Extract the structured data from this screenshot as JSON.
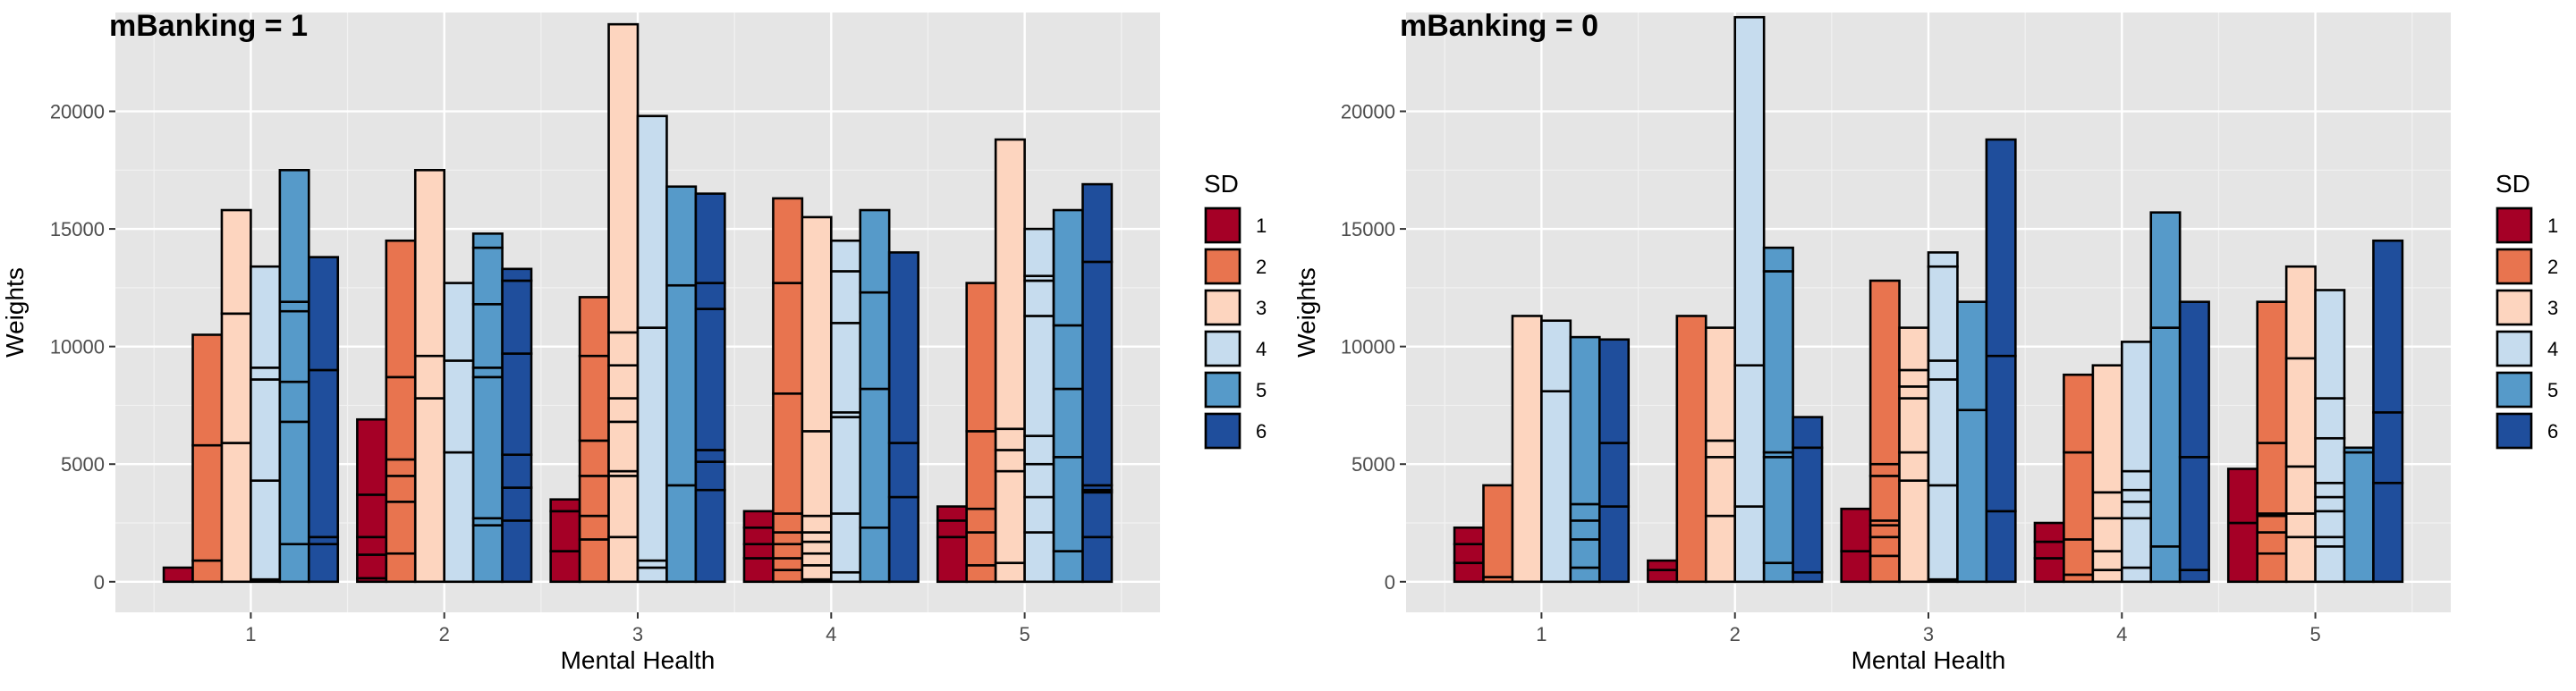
{
  "chart_data": [
    {
      "type": "bar",
      "title": "mBanking = 1",
      "xlabel": "Mental Health",
      "ylabel": "Weights",
      "ylim": [
        -1300,
        24200
      ],
      "yticks": [
        0,
        5000,
        10000,
        15000,
        20000
      ],
      "ytick_labels": [
        "0",
        "5000",
        "10000",
        "15000",
        "20000"
      ],
      "categories": [
        "1",
        "2",
        "3",
        "4",
        "5"
      ],
      "legend_title": "SD",
      "legend_position": "right",
      "grid": true,
      "series": [
        {
          "name": "1",
          "color": "#a50026",
          "stacks": [
            [
              600
            ],
            [
              150,
              1150,
              1900,
              3700,
              6900
            ],
            [
              1300,
              3000,
              3500
            ],
            [
              1000,
              1600,
              2300,
              3000
            ],
            [
              1900,
              2600,
              3200
            ]
          ]
        },
        {
          "name": "2",
          "color": "#e8744f",
          "stacks": [
            [
              900,
              5800,
              10500
            ],
            [
              1200,
              3400,
              4500,
              5200,
              8700,
              14500
            ],
            [
              1800,
              2800,
              4500,
              6000,
              9600,
              12100
            ],
            [
              500,
              1000,
              1600,
              2100,
              2900,
              8000,
              12700,
              16300
            ],
            [
              700,
              2100,
              3100,
              6400,
              12700
            ]
          ]
        },
        {
          "name": "3",
          "color": "#fdd5bf",
          "stacks": [
            [
              5900,
              11400,
              15800
            ],
            [
              7800,
              9600,
              17500
            ],
            [
              1900,
              4500,
              4700,
              6800,
              7800,
              9200,
              10600,
              23700
            ],
            [
              100,
              700,
              1200,
              1700,
              2100,
              2800,
              6400,
              15500
            ],
            [
              800,
              4700,
              5600,
              6500,
              18800
            ]
          ]
        },
        {
          "name": "4",
          "color": "#c6dcee",
          "stacks": [
            [
              100,
              4300,
              8600,
              9100,
              13400
            ],
            [
              5500,
              9400,
              12700
            ],
            [
              600,
              900,
              10800,
              19800
            ],
            [
              400,
              2900,
              7000,
              7200,
              11000,
              13200,
              14500
            ],
            [
              2100,
              3600,
              5000,
              6200,
              11300,
              12800,
              13000,
              15000
            ]
          ]
        },
        {
          "name": "5",
          "color": "#569ac9",
          "stacks": [
            [
              1600,
              6800,
              8500,
              11500,
              11900,
              17500
            ],
            [
              2400,
              2700,
              8700,
              9100,
              11800,
              14200,
              14800
            ],
            [
              4100,
              12600,
              16800
            ],
            [
              2300,
              8200,
              12300,
              15800
            ],
            [
              1300,
              5300,
              8200,
              10900,
              15800
            ]
          ]
        },
        {
          "name": "6",
          "color": "#1f4e9c",
          "stacks": [
            [
              1600,
              1900,
              9000,
              13800
            ],
            [
              2600,
              4000,
              5400,
              9700,
              12800,
              13300
            ],
            [
              3900,
              5100,
              5600,
              11600,
              12700,
              16500
            ],
            [
              3600,
              5900,
              14000
            ],
            [
              1900,
              3800,
              3900,
              4100,
              13600,
              16900
            ]
          ]
        }
      ]
    },
    {
      "type": "bar",
      "title": "mBanking = 0",
      "xlabel": "Mental Health",
      "ylabel": "Weights",
      "ylim": [
        -1300,
        24200
      ],
      "yticks": [
        0,
        5000,
        10000,
        15000,
        20000
      ],
      "ytick_labels": [
        "0",
        "5000",
        "10000",
        "15000",
        "20000"
      ],
      "categories": [
        "1",
        "2",
        "3",
        "4",
        "5"
      ],
      "legend_title": "SD",
      "legend_position": "right",
      "grid": true,
      "series": [
        {
          "name": "1",
          "color": "#a50026",
          "stacks": [
            [
              800,
              1600,
              2300
            ],
            [
              500,
              900
            ],
            [
              1300,
              3100
            ],
            [
              1000,
              1700,
              2500
            ],
            [
              2500,
              4800
            ]
          ]
        },
        {
          "name": "2",
          "color": "#e8744f",
          "stacks": [
            [
              200,
              4100
            ],
            [
              11300
            ],
            [
              1100,
              1900,
              2400,
              2600,
              4500,
              5000,
              12800
            ],
            [
              300,
              1800,
              5500,
              8800
            ],
            [
              1200,
              2100,
              2800,
              2900,
              5900,
              11900
            ]
          ]
        },
        {
          "name": "3",
          "color": "#fdd5bf",
          "stacks": [
            [
              11300
            ],
            [
              2800,
              5300,
              6000,
              10800
            ],
            [
              4300,
              5500,
              7800,
              8300,
              9000,
              10800
            ],
            [
              500,
              1300,
              2700,
              3800,
              9200
            ],
            [
              1900,
              2900,
              4900,
              9500,
              13400
            ]
          ]
        },
        {
          "name": "4",
          "color": "#c6dcee",
          "stacks": [
            [
              8100,
              11100
            ],
            [
              3200,
              9200,
              24000
            ],
            [
              100,
              4100,
              8600,
              9400,
              13400,
              14000
            ],
            [
              600,
              2700,
              3400,
              3900,
              4700,
              10200
            ],
            [
              1500,
              1900,
              3000,
              3600,
              4200,
              6100,
              7800,
              12400
            ]
          ]
        },
        {
          "name": "5",
          "color": "#569ac9",
          "stacks": [
            [
              600,
              1800,
              2600,
              3300,
              10400
            ],
            [
              800,
              5300,
              5500,
              13200,
              14200
            ],
            [
              7300,
              11900
            ],
            [
              1500,
              10800,
              15700
            ],
            [
              5500,
              5700
            ]
          ]
        },
        {
          "name": "6",
          "color": "#1f4e9c",
          "stacks": [
            [
              3200,
              5900,
              10300
            ],
            [
              400,
              5700,
              7000
            ],
            [
              3000,
              9600,
              18800
            ],
            [
              500,
              5300,
              11900
            ],
            [
              4200,
              7200,
              14500
            ]
          ]
        }
      ]
    }
  ]
}
